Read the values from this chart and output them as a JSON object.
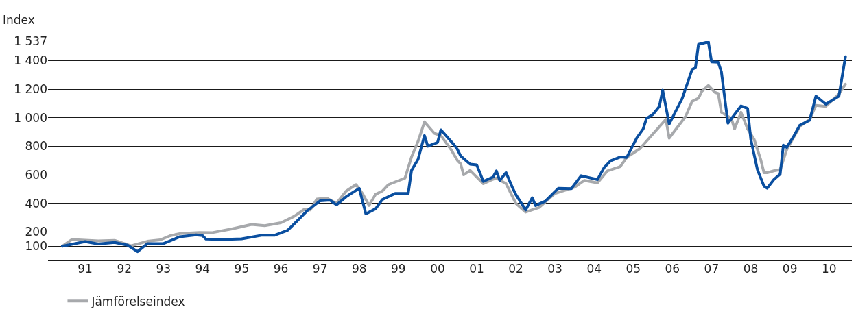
{
  "chart_data": {
    "type": "line",
    "ylabel": "Index",
    "xlim": [
      "1990-07-20",
      "2011-01-30"
    ],
    "xticks": [
      {
        "value": "1991-07",
        "label": "91"
      },
      {
        "value": "1992-07",
        "label": "92"
      },
      {
        "value": "1993-07",
        "label": "93"
      },
      {
        "value": "1994-07",
        "label": "94"
      },
      {
        "value": "1995-07",
        "label": "95"
      },
      {
        "value": "1996-07",
        "label": "96"
      },
      {
        "value": "1997-07",
        "label": "97"
      },
      {
        "value": "1998-07",
        "label": "98"
      },
      {
        "value": "1999-07",
        "label": "99"
      },
      {
        "value": "2000-07",
        "label": "00"
      },
      {
        "value": "2001-07",
        "label": "01"
      },
      {
        "value": "2002-07",
        "label": "02"
      },
      {
        "value": "2003-07",
        "label": "03"
      },
      {
        "value": "2004-07",
        "label": "04"
      },
      {
        "value": "2005-07",
        "label": "05"
      },
      {
        "value": "2006-07",
        "label": "06"
      },
      {
        "value": "2007-07",
        "label": "07"
      },
      {
        "value": "2008-07",
        "label": "08"
      },
      {
        "value": "2009-07",
        "label": "09"
      },
      {
        "value": "2010-07",
        "label": "10"
      }
    ],
    "ylim": [
      0,
      1537
    ],
    "yticks": [
      100,
      200,
      400,
      600,
      800,
      {
        "value": 1000,
        "label": "1 000"
      },
      {
        "value": 1200,
        "label": "1 200"
      },
      {
        "value": 1400,
        "label": "1 400"
      },
      {
        "value": 1537,
        "label": "1 537"
      }
    ],
    "grid": "y",
    "legend": "bottom",
    "line_style": "solid",
    "series": [
      {
        "name": "Jämförelseindex",
        "color": "#a7a9ac",
        "x": [
          "1990-12",
          "1991-03",
          "1991-11",
          "1992-04",
          "1992-09",
          "1993-02",
          "1993-06",
          "1993-09",
          "1993-12",
          "1994-06",
          "1994-10",
          "1995-04",
          "1995-10",
          "1996-02",
          "1996-07",
          "1996-11",
          "1997-02",
          "1997-04",
          "1997-06",
          "1997-09",
          "1997-12",
          "1998-03",
          "1998-06",
          "1998-08",
          "1998-10",
          "1998-12",
          "1999-02",
          "1999-04",
          "1999-09",
          "1999-11",
          "2000-01",
          "2000-03",
          "2000-06",
          "2000-08",
          "2000-11",
          "2001-01",
          "2001-02",
          "2001-03",
          "2001-05",
          "2001-09",
          "2001-12",
          "2002-01",
          "2002-04",
          "2002-07",
          "2002-10",
          "2003-02",
          "2003-07",
          "2004-01",
          "2004-04",
          "2004-08",
          "2004-11",
          "2005-03",
          "2005-05",
          "2005-09",
          "2006-05",
          "2006-06",
          "2006-11",
          "2007-01",
          "2007-03",
          "2007-04",
          "2007-06",
          "2007-08",
          "2007-09",
          "2007-10",
          "2008-01",
          "2008-02",
          "2008-04",
          "2008-06",
          "2008-08",
          "2008-10",
          "2008-11",
          "2008-12",
          "2009-02",
          "2009-04",
          "2009-06",
          "2009-10",
          "2010-01",
          "2010-03",
          "2010-06",
          "2010-10",
          "2010-12"
        ],
        "values": [
          100,
          147,
          137,
          141,
          103,
          134,
          144,
          173,
          188,
          196,
          195,
          221,
          252,
          244,
          264,
          309,
          357,
          354,
          430,
          437,
          400,
          486,
          532,
          469,
          385,
          463,
          486,
          532,
          577,
          725,
          834,
          971,
          891,
          875,
          780,
          702,
          678,
          600,
          631,
          538,
          569,
          577,
          538,
          400,
          339,
          370,
          469,
          514,
          561,
          544,
          627,
          657,
          722,
          784,
          989,
          857,
          1010,
          1115,
          1137,
          1185,
          1226,
          1178,
          1170,
          1038,
          996,
          922,
          1038,
          922,
          849,
          708,
          615,
          615,
          628,
          636,
          776,
          939,
          989,
          1087,
          1080,
          1166,
          1235
        ]
      },
      {
        "color": "#0a4fa0",
        "x": [
          "1990-12",
          "1991-07",
          "1991-11",
          "1992-04",
          "1992-08",
          "1992-11",
          "1993-02",
          "1993-07",
          "1993-12",
          "1994-05",
          "1994-07",
          "1994-08",
          "1995-01",
          "1995-07",
          "1996-01",
          "1996-05",
          "1996-09",
          "1996-11",
          "1997-01",
          "1997-03",
          "1997-07",
          "1997-10",
          "1997-12",
          "1998-03",
          "1998-07",
          "1998-09",
          "1998-12",
          "1999-02",
          "1999-06",
          "1999-10",
          "1999-11",
          "2000-01",
          "2000-03",
          "2000-04",
          "2000-07",
          "2000-08",
          "2000-12",
          "2001-01",
          "2001-02",
          "2001-04",
          "2001-05",
          "2001-07",
          "2001-09",
          "2001-12",
          "2002-01",
          "2002-02",
          "2002-04",
          "2002-06",
          "2002-07",
          "2002-10",
          "2002-12",
          "2003-01",
          "2003-04",
          "2003-08",
          "2003-12",
          "2004-03",
          "2004-08",
          "2004-10",
          "2004-12",
          "2005-03",
          "2005-05",
          "2005-08",
          "2005-10",
          "2005-11",
          "2006-01",
          "2006-03",
          "2006-04",
          "2006-06",
          "2006-10",
          "2007-01",
          "2007-02",
          "2007-03",
          "2007-06",
          "2007-07",
          "2007-09",
          "2007-10",
          "2007-11",
          "2007-12",
          "2008-04",
          "2008-06",
          "2008-07",
          "2008-09",
          "2008-11",
          "2008-12",
          "2009-02",
          "2009-04",
          "2009-05",
          "2009-06",
          "2009-08",
          "2009-10",
          "2010-01",
          "2010-03",
          "2010-06",
          "2010-10",
          "2010-12"
        ],
        "values": [
          100,
          132,
          115,
          126,
          107,
          62,
          118,
          118,
          166,
          179,
          174,
          150,
          147,
          151,
          176,
          176,
          211,
          256,
          302,
          347,
          418,
          423,
          389,
          446,
          505,
          327,
          362,
          426,
          469,
          469,
          631,
          708,
          875,
          800,
          827,
          915,
          811,
          780,
          733,
          694,
          675,
          670,
          554,
          585,
          627,
          561,
          616,
          508,
          462,
          354,
          439,
          385,
          415,
          505,
          503,
          594,
          567,
          650,
          698,
          725,
          722,
          857,
          922,
          995,
          1024,
          1080,
          1193,
          956,
          1137,
          1339,
          1352,
          1514,
          1532,
          1392,
          1389,
          1321,
          1137,
          962,
          1083,
          1066,
          849,
          636,
          521,
          506,
          567,
          605,
          808,
          792,
          865,
          947,
          982,
          1151,
          1095,
          1151,
          1428
        ]
      }
    ]
  }
}
